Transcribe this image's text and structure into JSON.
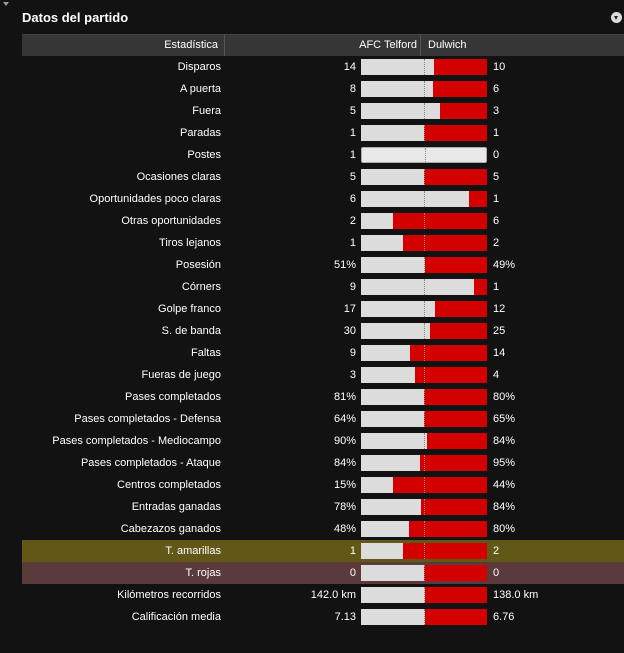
{
  "panel": {
    "title": "Datos del partido"
  },
  "header": {
    "stat": "Estadística",
    "home": "AFC Telford",
    "away": "Dulwich"
  },
  "colors": {
    "home_bar": "#dcdcdc",
    "away_bar": "#d40000",
    "yellow_row": "#615716",
    "red_row": "#5a3a3b"
  },
  "stats": [
    {
      "label": "Disparos",
      "home": "14",
      "away": "10",
      "home_share": 0.58
    },
    {
      "label": "A puerta",
      "home": "8",
      "away": "6",
      "home_share": 0.57
    },
    {
      "label": "Fuera",
      "home": "5",
      "away": "3",
      "home_share": 0.63
    },
    {
      "label": "Paradas",
      "home": "1",
      "away": "1",
      "home_share": 0.5
    },
    {
      "label": "Postes",
      "home": "1",
      "away": "0",
      "home_share": 1.0,
      "neutral": true
    },
    {
      "label": "Ocasiones claras",
      "home": "5",
      "away": "5",
      "home_share": 0.5
    },
    {
      "label": "Oportunidades poco claras",
      "home": "6",
      "away": "1",
      "home_share": 0.86
    },
    {
      "label": "Otras oportunidades",
      "home": "2",
      "away": "6",
      "home_share": 0.25
    },
    {
      "label": "Tiros lejanos",
      "home": "1",
      "away": "2",
      "home_share": 0.33
    },
    {
      "label": "Posesión",
      "home": "51%",
      "away": "49%",
      "home_share": 0.51
    },
    {
      "label": "Córners",
      "home": "9",
      "away": "1",
      "home_share": 0.9
    },
    {
      "label": "Golpe franco",
      "home": "17",
      "away": "12",
      "home_share": 0.59
    },
    {
      "label": "S. de banda",
      "home": "30",
      "away": "25",
      "home_share": 0.55
    },
    {
      "label": "Faltas",
      "home": "9",
      "away": "14",
      "home_share": 0.39
    },
    {
      "label": "Fueras de juego",
      "home": "3",
      "away": "4",
      "home_share": 0.43
    },
    {
      "label": "Pases completados",
      "home": "81%",
      "away": "80%",
      "home_share": 0.5
    },
    {
      "label": "Pases completados - Defensa",
      "home": "64%",
      "away": "65%",
      "home_share": 0.5
    },
    {
      "label": "Pases completados - Mediocampo",
      "home": "90%",
      "away": "84%",
      "home_share": 0.52
    },
    {
      "label": "Pases completados - Ataque",
      "home": "84%",
      "away": "95%",
      "home_share": 0.47
    },
    {
      "label": "Centros completados",
      "home": "15%",
      "away": "44%",
      "home_share": 0.25
    },
    {
      "label": "Entradas ganadas",
      "home": "78%",
      "away": "84%",
      "home_share": 0.48
    },
    {
      "label": "Cabezazos ganados",
      "home": "48%",
      "away": "80%",
      "home_share": 0.38
    },
    {
      "label": "T. amarillas",
      "home": "1",
      "away": "2",
      "home_share": 0.33,
      "highlight": "yellow"
    },
    {
      "label": "T. rojas",
      "home": "0",
      "away": "0",
      "home_share": 0.5,
      "highlight": "red"
    },
    {
      "label": "Kilómetros recorridos",
      "home": "142.0 km",
      "away": "138.0 km",
      "home_share": 0.51
    },
    {
      "label": "Calificación media",
      "home": "7.13",
      "away": "6.76",
      "home_share": 0.51
    }
  ]
}
